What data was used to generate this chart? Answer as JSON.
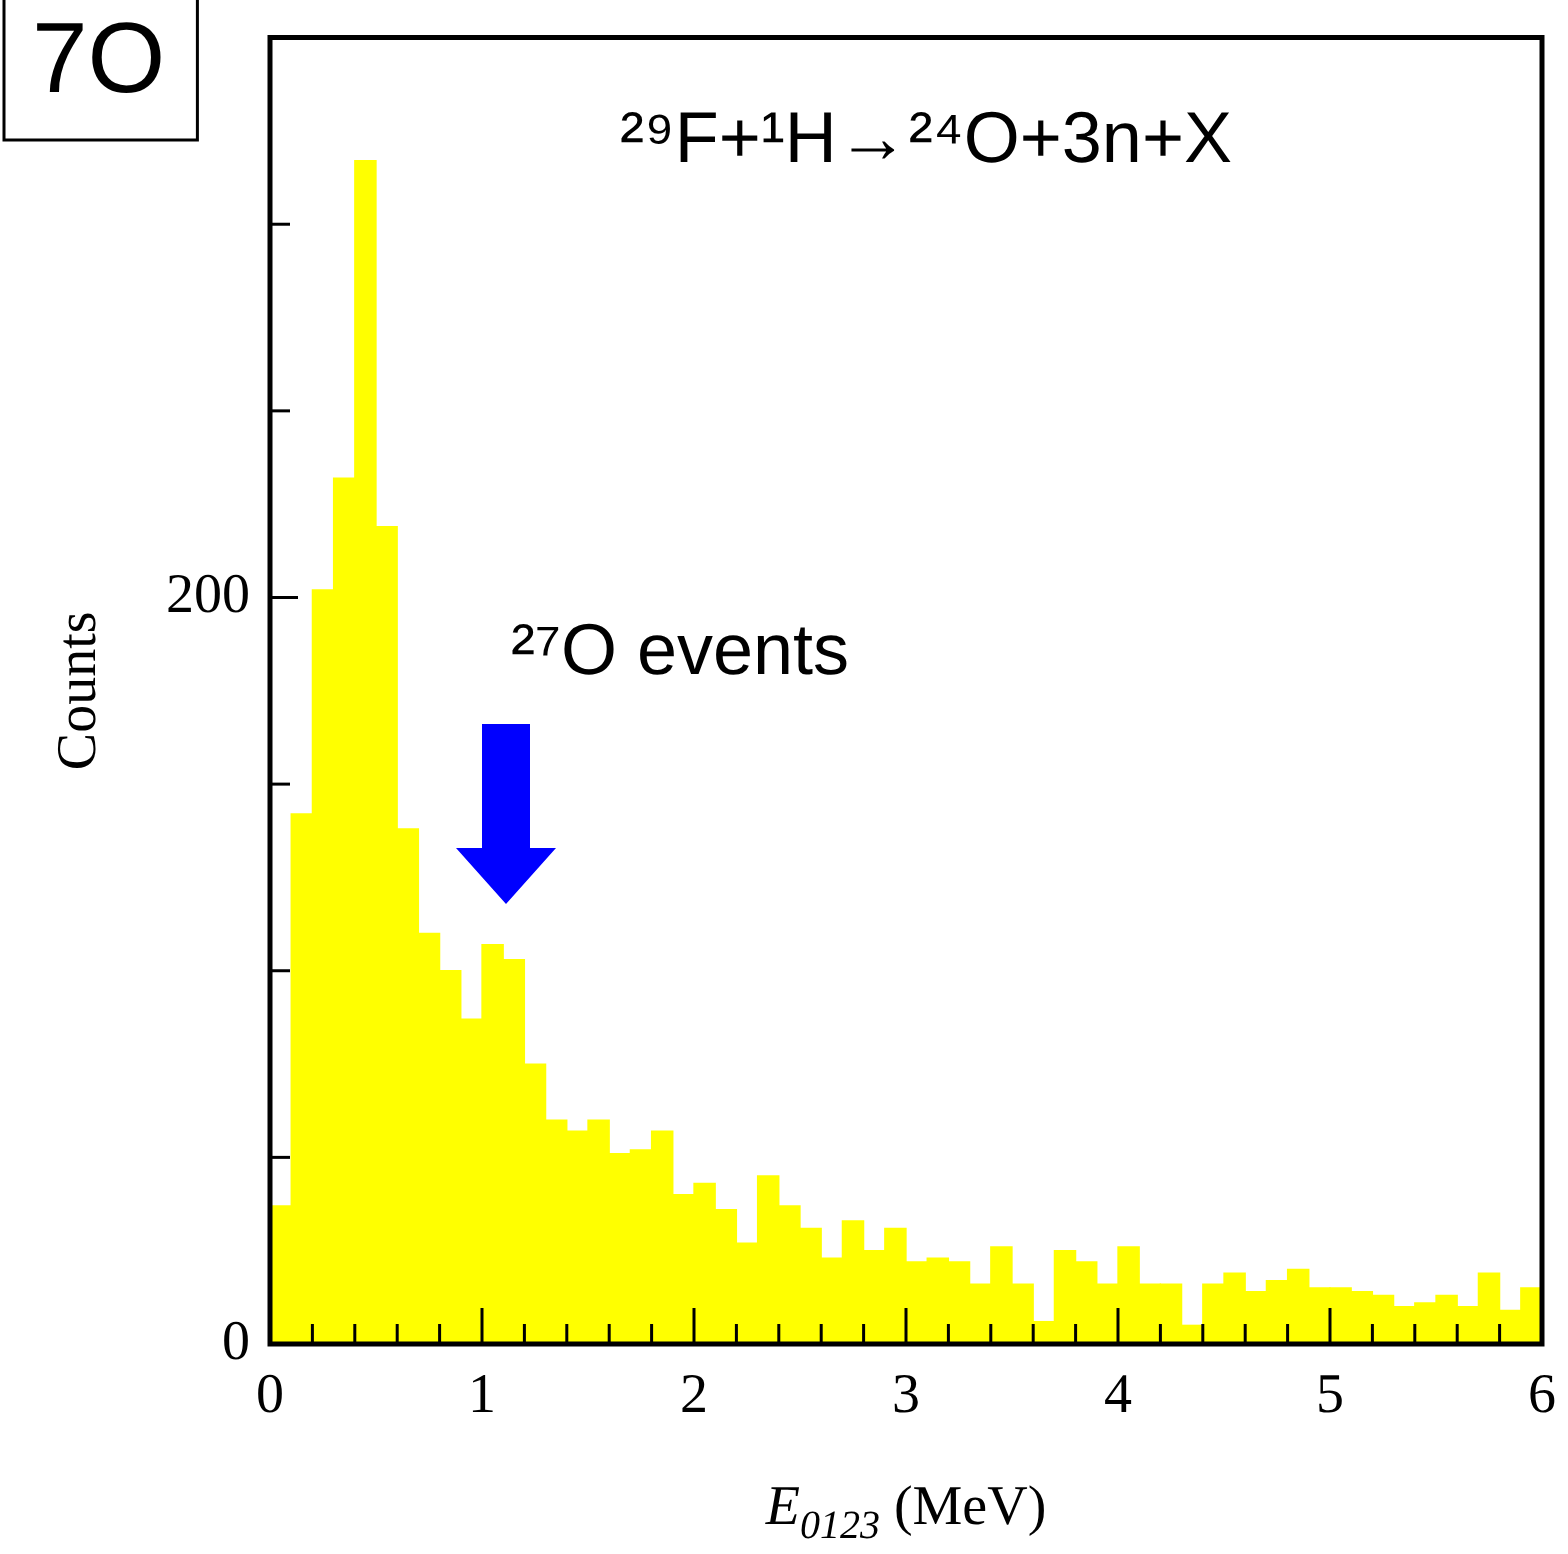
{
  "chart_data": {
    "type": "histogram",
    "title": "²⁹F+¹H→²⁴O+3n+X",
    "xlabel": "E$_{0123}$ (MeV)",
    "ylabel": "Counts",
    "bins": [
      0,
      0.1,
      0.2,
      0.3,
      0.4,
      0.5,
      0.6,
      0.7,
      0.8,
      0.9,
      1,
      1.1,
      1.2,
      1.3,
      1.4,
      1.5,
      1.6,
      1.7,
      1.8,
      1.9,
      2,
      2.1,
      2.2,
      2.3,
      2.4,
      2.5,
      2.6,
      2.7,
      2.8,
      2.9,
      3,
      3.1,
      3.2,
      3.3,
      3.4,
      3.5,
      3.6,
      3.7,
      3.8,
      3.9,
      4,
      4.1,
      4.2,
      4.3,
      4.4,
      4.5,
      4.6,
      4.7,
      4.8,
      4.9,
      5,
      5.1,
      5.2,
      5.3,
      5.4,
      5.5,
      5.6,
      5.7,
      5.8,
      5.9,
      6
    ],
    "values": [
      37,
      142,
      202,
      232,
      317,
      219,
      138,
      110,
      100,
      87,
      107,
      103,
      75,
      60,
      57,
      60,
      51,
      52,
      57,
      40,
      43,
      36,
      27,
      45,
      37,
      31,
      23,
      33,
      25,
      31,
      22,
      23,
      22,
      16,
      26,
      16,
      6,
      25,
      22,
      16,
      26,
      16,
      16,
      5,
      16,
      19,
      14,
      17,
      20,
      15,
      15,
      14,
      13,
      10,
      11,
      13,
      10,
      19,
      9,
      15
    ],
    "color": "#ffff00",
    "xlim": [
      0,
      6
    ],
    "xticks": [
      0,
      {
        "value": 0.2,
        "label": null
      },
      {
        "value": 0.4,
        "label": null
      },
      {
        "value": 0.6,
        "label": null
      },
      {
        "value": 0.8,
        "label": null
      },
      1,
      {
        "value": 1.2,
        "label": null
      },
      {
        "value": 1.4,
        "label": null
      },
      {
        "value": 1.6,
        "label": null
      },
      {
        "value": 1.8,
        "label": null
      },
      2,
      {
        "value": 2.2,
        "label": null
      },
      {
        "value": 2.4,
        "label": null
      },
      {
        "value": 2.6,
        "label": null
      },
      {
        "value": 2.8,
        "label": null
      },
      3,
      {
        "value": 3.2,
        "label": null
      },
      {
        "value": 3.4,
        "label": null
      },
      {
        "value": 3.6,
        "label": null
      },
      {
        "value": 3.8,
        "label": null
      },
      4,
      {
        "value": 4.2,
        "label": null
      },
      {
        "value": 4.4,
        "label": null
      },
      {
        "value": 4.6,
        "label": null
      },
      {
        "value": 4.8,
        "label": null
      },
      5,
      {
        "value": 5.2,
        "label": null
      },
      {
        "value": 5.4,
        "label": null
      },
      {
        "value": 5.6,
        "label": null
      },
      {
        "value": 5.8,
        "label": null
      },
      6
    ],
    "ylim": [
      0,
      350
    ],
    "yticks": [
      0,
      {
        "value": 50,
        "label": null
      },
      {
        "value": 100,
        "label": null
      },
      {
        "value": 150,
        "label": null
      },
      200,
      {
        "value": 250,
        "label": null
      },
      {
        "value": 300,
        "label": null
      }
    ],
    "grid": false,
    "legend": false,
    "annotations": [
      "7O",
      "²⁷O events"
    ]
  }
}
